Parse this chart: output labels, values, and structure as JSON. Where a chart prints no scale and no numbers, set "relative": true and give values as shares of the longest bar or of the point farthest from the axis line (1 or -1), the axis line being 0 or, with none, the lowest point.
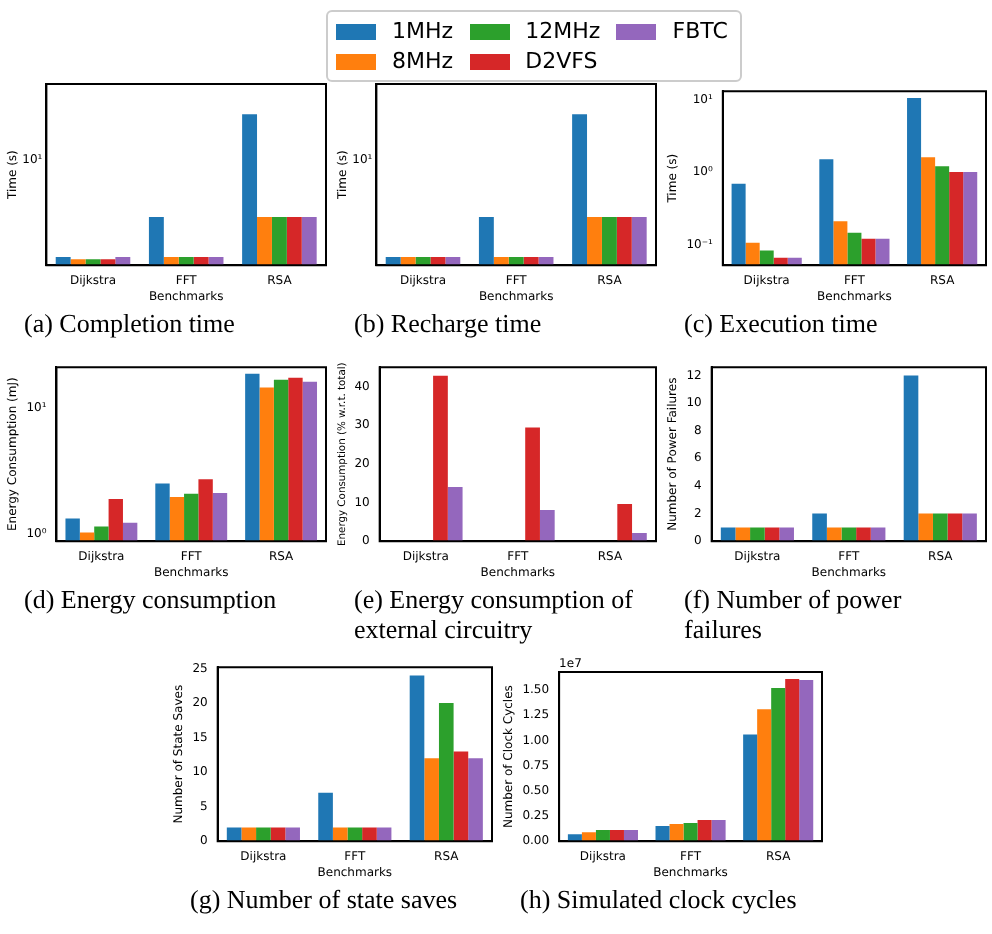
{
  "chart_data": [
    {
      "type": "bar",
      "title": "(a) Completion time",
      "xlabel": "Benchmarks",
      "ylabel": "Time (s)",
      "categories": [
        "Dijkstra",
        "FFT",
        "RSA"
      ],
      "relative": true,
      "annotations": [
        "10¹"
      ],
      "legend": "top",
      "series": [
        {
          "name": "1MHz",
          "color": "#1f77b4",
          "values": [
            0.054,
            0.32,
            1
          ]
        },
        {
          "name": "8MHz",
          "color": "#ff7f0e",
          "values": [
            0.04,
            0.054,
            0.32
          ]
        },
        {
          "name": "12MHz",
          "color": "#2ca02c",
          "values": [
            0.04,
            0.054,
            0.32
          ]
        },
        {
          "name": "D2VFS",
          "color": "#d62728",
          "values": [
            0.04,
            0.054,
            0.32
          ]
        },
        {
          "name": "FBTC",
          "color": "#9467bd",
          "values": [
            0.054,
            0.054,
            0.32
          ]
        }
      ]
    },
    {
      "type": "bar",
      "title": "(b) Recharge time",
      "xlabel": "Benchmarks",
      "ylabel": "Time (s)",
      "categories": [
        "Dijkstra",
        "FFT",
        "RSA"
      ],
      "relative": true,
      "annotations": [
        "10¹"
      ],
      "series": [
        {
          "color": "#1f77b4",
          "values": [
            0.054,
            0.32,
            1
          ]
        },
        {
          "color": "#ff7f0e",
          "values": [
            0.054,
            0.054,
            0.32
          ]
        },
        {
          "color": "#2ca02c",
          "values": [
            0.054,
            0.054,
            0.32
          ]
        },
        {
          "color": "#d62728",
          "values": [
            0.054,
            0.054,
            0.32
          ]
        },
        {
          "color": "#9467bd",
          "values": [
            0.054,
            0.054,
            0.32
          ]
        }
      ]
    },
    {
      "type": "bar",
      "title": "(c) Execution time",
      "xlabel": "Benchmarks",
      "ylabel": "Time (s)",
      "categories": [
        "Dijkstra",
        "FFT",
        "RSA"
      ],
      "log": true,
      "ylim": [
        0.052,
        13
      ],
      "yticks": [
        {
          "value": 0.1,
          "label": "10⁻¹"
        },
        {
          "value": 1,
          "label": "10⁰"
        },
        {
          "value": 10,
          "label": "10¹"
        }
      ],
      "series": [
        {
          "color": "#1f77b4",
          "values": [
            0.69,
            1.5,
            10.5
          ]
        },
        {
          "color": "#ff7f0e",
          "values": [
            0.106,
            0.21,
            1.6
          ]
        },
        {
          "color": "#2ca02c",
          "values": [
            0.083,
            0.146,
            1.2
          ]
        },
        {
          "color": "#d62728",
          "values": [
            0.066,
            0.12,
            1.0
          ]
        },
        {
          "color": "#9467bd",
          "values": [
            0.066,
            0.12,
            1.0
          ]
        }
      ]
    },
    {
      "type": "bar",
      "title": "(d) Energy consumption",
      "xlabel": "Benchmarks",
      "ylabel": "Energy Consumption (mJ)",
      "categories": [
        "Dijkstra",
        "FFT",
        "RSA"
      ],
      "log": true,
      "ylim": [
        0.87,
        21
      ],
      "yticks": [
        {
          "value": 1,
          "label": "10⁰"
        },
        {
          "value": 10,
          "label": "10¹"
        }
      ],
      "series": [
        {
          "color": "#1f77b4",
          "values": [
            1.32,
            2.5,
            18.6
          ]
        },
        {
          "color": "#ff7f0e",
          "values": [
            1.02,
            1.95,
            14.5
          ]
        },
        {
          "color": "#2ca02c",
          "values": [
            1.14,
            2.07,
            16.7
          ]
        },
        {
          "color": "#d62728",
          "values": [
            1.88,
            2.7,
            17.3
          ]
        },
        {
          "color": "#9467bd",
          "values": [
            1.22,
            2.1,
            16.1
          ]
        }
      ]
    },
    {
      "type": "bar",
      "title": "(e) Energy consumption of external circuitry",
      "xlabel": "Benchmarks",
      "ylabel": "Energy Consumption (% w.r.t. total)",
      "categories": [
        "Dijkstra",
        "FFT",
        "RSA"
      ],
      "ylim": [
        0,
        45
      ],
      "yticks": [
        0,
        10,
        20,
        30,
        40
      ],
      "series": [
        {
          "color": "#1f77b4",
          "values": [
            0,
            0,
            0
          ]
        },
        {
          "color": "#ff7f0e",
          "values": [
            0,
            0,
            0
          ]
        },
        {
          "color": "#2ca02c",
          "values": [
            0,
            0,
            0
          ]
        },
        {
          "color": "#d62728",
          "values": [
            42.8,
            29.4,
            9.6
          ]
        },
        {
          "color": "#9467bd",
          "values": [
            14.0,
            8.1,
            2.1
          ]
        }
      ]
    },
    {
      "type": "bar",
      "title": "(f) Number of power failures",
      "xlabel": "Benchmarks",
      "ylabel": "Number of Power Failures",
      "categories": [
        "Dijkstra",
        "FFT",
        "RSA"
      ],
      "ylim": [
        0,
        12.6
      ],
      "yticks": [
        0,
        2,
        4,
        6,
        8,
        10,
        12
      ],
      "series": [
        {
          "color": "#1f77b4",
          "values": [
            1,
            2,
            12
          ]
        },
        {
          "color": "#ff7f0e",
          "values": [
            1,
            1,
            2
          ]
        },
        {
          "color": "#2ca02c",
          "values": [
            1,
            1,
            2
          ]
        },
        {
          "color": "#d62728",
          "values": [
            1,
            1,
            2
          ]
        },
        {
          "color": "#9467bd",
          "values": [
            1,
            1,
            2
          ]
        }
      ]
    },
    {
      "type": "bar",
      "title": "(g) Number of state saves",
      "xlabel": "Benchmarks",
      "ylabel": "Number of State Saves",
      "categories": [
        "Dijkstra",
        "FFT",
        "RSA"
      ],
      "ylim": [
        0,
        25.2
      ],
      "yticks": [
        0,
        5,
        10,
        15,
        20,
        25
      ],
      "series": [
        {
          "color": "#1f77b4",
          "values": [
            2,
            7,
            24
          ]
        },
        {
          "color": "#ff7f0e",
          "values": [
            2,
            2,
            12
          ]
        },
        {
          "color": "#2ca02c",
          "values": [
            2,
            2,
            20
          ]
        },
        {
          "color": "#d62728",
          "values": [
            2,
            2,
            13
          ]
        },
        {
          "color": "#9467bd",
          "values": [
            2,
            2,
            12
          ]
        }
      ]
    },
    {
      "type": "bar",
      "title": "(h) Simulated clock cycles",
      "xlabel": "Benchmarks",
      "ylabel": "Number of Clock Cycles",
      "categories": [
        "Dijkstra",
        "FFT",
        "RSA"
      ],
      "ylim": [
        0,
        1.68
      ],
      "yticks": [
        {
          "value": 0,
          "label": "0.00"
        },
        {
          "value": 0.25,
          "label": "0.25"
        },
        {
          "value": 0.5,
          "label": "0.50"
        },
        {
          "value": 0.75,
          "label": "0.75"
        },
        {
          "value": 1,
          "label": "1.00"
        },
        {
          "value": 1.25,
          "label": "1.25"
        },
        {
          "value": 1.5,
          "label": "1.50"
        }
      ],
      "annotations": [
        "1e7"
      ],
      "series": [
        {
          "color": "#1f77b4",
          "values": [
            0.07,
            0.15,
            1.06
          ]
        },
        {
          "color": "#ff7f0e",
          "values": [
            0.09,
            0.17,
            1.31
          ]
        },
        {
          "color": "#2ca02c",
          "values": [
            0.11,
            0.18,
            1.52
          ]
        },
        {
          "color": "#d62728",
          "values": [
            0.11,
            0.21,
            1.61
          ]
        },
        {
          "color": "#9467bd",
          "values": [
            0.11,
            0.21,
            1.6
          ]
        }
      ]
    }
  ]
}
